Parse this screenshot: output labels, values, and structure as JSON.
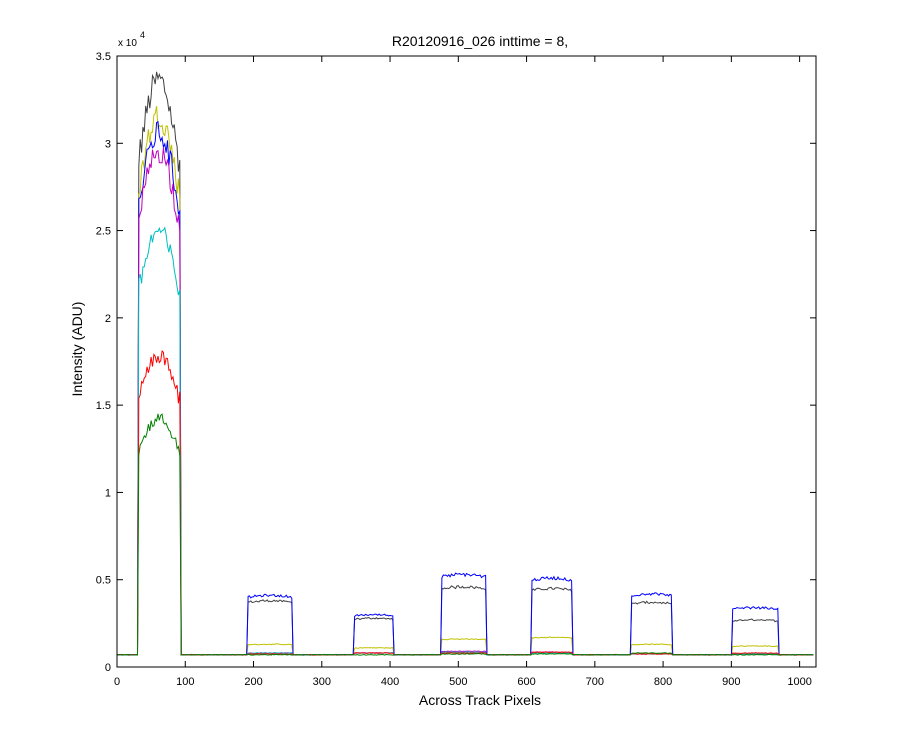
{
  "chart_data": {
    "type": "line",
    "title": "R20120916_026 inttime = 8,",
    "xlabel": "Across Track Pixels",
    "ylabel": "Intensity (ADU)",
    "y_multiplier": "x 10",
    "y_multiplier_exp": "4",
    "xlim": [
      0,
      1024
    ],
    "ylim": [
      0,
      35000
    ],
    "xticks": [
      0,
      100,
      200,
      300,
      400,
      500,
      600,
      700,
      800,
      900,
      1000
    ],
    "yticks": [
      0,
      5000,
      10000,
      15000,
      20000,
      25000,
      30000,
      35000
    ],
    "ytick_labels": [
      "0",
      "0.5",
      "1",
      "1.5",
      "2",
      "2.5",
      "3",
      "3.5"
    ],
    "grid": false,
    "baseline": 700,
    "series": [
      {
        "color": "#404040",
        "levels": [
          33000,
          3800,
          2800,
          4600,
          4500,
          3700,
          2700
        ]
      },
      {
        "color": "#c0c000",
        "levels": [
          31000,
          1300,
          1100,
          1600,
          1700,
          1300,
          1200
        ]
      },
      {
        "color": "#0000ff",
        "levels": [
          30000,
          4100,
          3000,
          5300,
          5100,
          4200,
          3400
        ]
      },
      {
        "color": "#bf00bf",
        "levels": [
          29000,
          800,
          800,
          900,
          850,
          750,
          750
        ]
      },
      {
        "color": "#00bfbf",
        "levels": [
          24500,
          800,
          800,
          850,
          800,
          750,
          750
        ]
      },
      {
        "color": "#ff0000",
        "levels": [
          17500,
          750,
          800,
          800,
          850,
          750,
          800
        ]
      },
      {
        "color": "#008000",
        "levels": [
          14000,
          700,
          700,
          750,
          750,
          800,
          700
        ]
      }
    ],
    "plateaus": [
      {
        "start": 32,
        "end": 93
      },
      {
        "start": 192,
        "end": 256
      },
      {
        "start": 348,
        "end": 405
      },
      {
        "start": 475,
        "end": 540
      },
      {
        "start": 608,
        "end": 666
      },
      {
        "start": 753,
        "end": 812
      },
      {
        "start": 902,
        "end": 968
      }
    ]
  }
}
